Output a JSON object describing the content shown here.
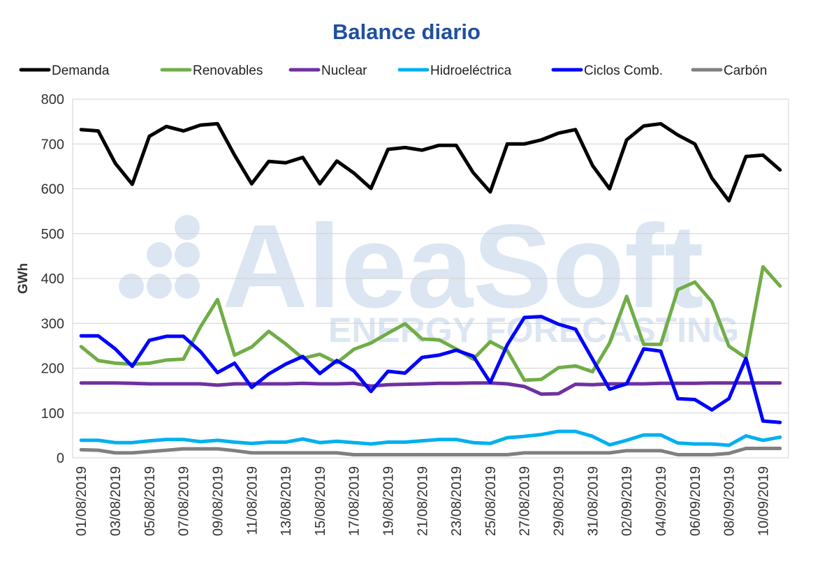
{
  "chart_data": {
    "type": "line",
    "title": "Balance diario",
    "xlabel": "",
    "ylabel": "GWh",
    "ylim": [
      0,
      800
    ],
    "yticks": [
      0,
      100,
      200,
      300,
      400,
      500,
      600,
      700,
      800
    ],
    "grid": "horizontal",
    "legend_position": "top",
    "watermark": {
      "main": "AleaSoft",
      "sub": "ENERGY FORECASTING"
    },
    "x": [
      "01/08/2019",
      "02/08/2019",
      "03/08/2019",
      "04/08/2019",
      "05/08/2019",
      "06/08/2019",
      "07/08/2019",
      "08/08/2019",
      "09/08/2019",
      "10/08/2019",
      "11/08/2019",
      "12/08/2019",
      "13/08/2019",
      "14/08/2019",
      "15/08/2019",
      "16/08/2019",
      "17/08/2019",
      "18/08/2019",
      "19/08/2019",
      "20/08/2019",
      "21/08/2019",
      "22/08/2019",
      "23/08/2019",
      "24/08/2019",
      "25/08/2019",
      "26/08/2019",
      "27/08/2019",
      "28/08/2019",
      "29/08/2019",
      "30/08/2019",
      "31/08/2019",
      "01/09/2019",
      "02/09/2019",
      "03/09/2019",
      "04/09/2019",
      "05/09/2019",
      "06/09/2019",
      "07/09/2019",
      "08/09/2019",
      "09/09/2019",
      "10/09/2019",
      "11/09/2019"
    ],
    "xtick_labels": [
      "01/08/2019",
      "03/08/2019",
      "05/08/2019",
      "07/08/2019",
      "09/08/2019",
      "11/08/2019",
      "13/08/2019",
      "15/08/2019",
      "17/08/2019",
      "19/08/2019",
      "21/08/2019",
      "23/08/2019",
      "25/08/2019",
      "27/08/2019",
      "29/08/2019",
      "31/08/2019",
      "02/09/2019",
      "04/09/2019",
      "06/09/2019",
      "08/09/2019",
      "10/09/2019"
    ],
    "series": [
      {
        "name": "Demanda",
        "color": "#000000",
        "values": [
          732,
          729,
          657,
          610,
          717,
          739,
          729,
          742,
          745,
          675,
          611,
          661,
          658,
          670,
          611,
          662,
          635,
          601,
          688,
          692,
          686,
          697,
          697,
          636,
          593,
          700,
          700,
          709,
          724,
          732,
          652,
          600,
          709,
          740,
          745,
          720,
          700,
          624,
          573,
          672,
          675,
          642
        ]
      },
      {
        "name": "Renovables",
        "color": "#70ad47",
        "values": [
          248,
          217,
          211,
          209,
          211,
          218,
          220,
          292,
          353,
          229,
          247,
          282,
          254,
          222,
          231,
          212,
          242,
          256,
          278,
          299,
          265,
          263,
          243,
          220,
          259,
          239,
          173,
          175,
          201,
          205,
          192,
          256,
          360,
          253,
          253,
          375,
          392,
          348,
          249,
          223,
          426,
          383
        ]
      },
      {
        "name": "Nuclear",
        "color": "#7030a0",
        "values": [
          167,
          167,
          167,
          166,
          165,
          165,
          165,
          165,
          162,
          165,
          165,
          165,
          165,
          166,
          165,
          165,
          166,
          160,
          163,
          164,
          165,
          166,
          166,
          167,
          167,
          165,
          159,
          142,
          143,
          164,
          163,
          165,
          165,
          165,
          166,
          166,
          166,
          167,
          167,
          167,
          167,
          167
        ]
      },
      {
        "name": "Hidroeléctrica",
        "color": "#00b0f0",
        "values": [
          39,
          39,
          34,
          34,
          38,
          41,
          41,
          36,
          39,
          35,
          32,
          35,
          35,
          42,
          34,
          37,
          34,
          31,
          35,
          35,
          38,
          41,
          41,
          34,
          32,
          45,
          48,
          52,
          59,
          59,
          48,
          29,
          39,
          51,
          51,
          33,
          31,
          31,
          28,
          49,
          39,
          46
        ]
      },
      {
        "name": "Ciclos Comb.",
        "color": "#0000ff",
        "values": [
          272,
          272,
          243,
          204,
          262,
          271,
          271,
          237,
          190,
          211,
          157,
          187,
          209,
          226,
          188,
          217,
          194,
          148,
          193,
          189,
          224,
          229,
          240,
          227,
          168,
          252,
          313,
          315,
          298,
          287,
          220,
          153,
          165,
          243,
          238,
          132,
          130,
          107,
          132,
          222,
          82,
          79
        ]
      },
      {
        "name": "Carbón",
        "color": "#808080",
        "values": [
          18,
          17,
          11,
          11,
          14,
          17,
          20,
          20,
          20,
          16,
          11,
          11,
          11,
          11,
          11,
          11,
          7,
          7,
          7,
          7,
          7,
          7,
          7,
          7,
          7,
          7,
          11,
          11,
          11,
          11,
          11,
          11,
          16,
          16,
          16,
          7,
          7,
          7,
          10,
          21,
          21,
          21
        ]
      }
    ]
  }
}
